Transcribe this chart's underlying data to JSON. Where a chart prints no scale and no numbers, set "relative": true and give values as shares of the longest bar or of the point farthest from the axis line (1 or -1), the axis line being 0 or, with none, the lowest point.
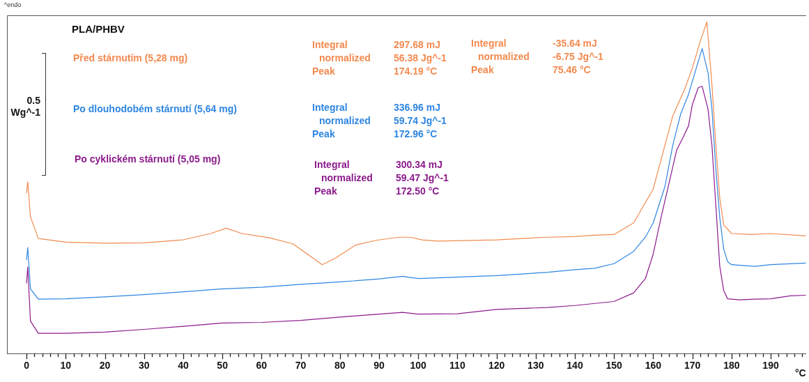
{
  "chart_data": {
    "type": "line",
    "title": "PLA/PHBV",
    "xlabel": "°C",
    "relative": true,
    "legend": false,
    "marker": "none",
    "line_style": "solid",
    "grid": false,
    "tick_labels": "x",
    "xlim": [
      -5,
      199
    ],
    "xticks": [
      0,
      {
        "value": 2,
        "label": null
      },
      {
        "value": 4,
        "label": null
      },
      {
        "value": 6,
        "label": null
      },
      {
        "value": 8,
        "label": null
      },
      10,
      {
        "value": 12,
        "label": null
      },
      {
        "value": 14,
        "label": null
      },
      {
        "value": 16,
        "label": null
      },
      {
        "value": 18,
        "label": null
      },
      20,
      {
        "value": 22,
        "label": null
      },
      {
        "value": 24,
        "label": null
      },
      {
        "value": 26,
        "label": null
      },
      {
        "value": 28,
        "label": null
      },
      30,
      {
        "value": 32,
        "label": null
      },
      {
        "value": 34,
        "label": null
      },
      {
        "value": 36,
        "label": null
      },
      {
        "value": 38,
        "label": null
      },
      40,
      {
        "value": 42,
        "label": null
      },
      {
        "value": 44,
        "label": null
      },
      {
        "value": 46,
        "label": null
      },
      {
        "value": 48,
        "label": null
      },
      50,
      {
        "value": 52,
        "label": null
      },
      {
        "value": 54,
        "label": null
      },
      {
        "value": 56,
        "label": null
      },
      {
        "value": 58,
        "label": null
      },
      60,
      {
        "value": 62,
        "label": null
      },
      {
        "value": 64,
        "label": null
      },
      {
        "value": 66,
        "label": null
      },
      {
        "value": 68,
        "label": null
      },
      70,
      {
        "value": 72,
        "label": null
      },
      {
        "value": 74,
        "label": null
      },
      {
        "value": 76,
        "label": null
      },
      {
        "value": 78,
        "label": null
      },
      80,
      {
        "value": 82,
        "label": null
      },
      {
        "value": 84,
        "label": null
      },
      {
        "value": 86,
        "label": null
      },
      {
        "value": 88,
        "label": null
      },
      90,
      {
        "value": 92,
        "label": null
      },
      {
        "value": 94,
        "label": null
      },
      {
        "value": 96,
        "label": null
      },
      {
        "value": 98,
        "label": null
      },
      100,
      {
        "value": 102,
        "label": null
      },
      {
        "value": 104,
        "label": null
      },
      {
        "value": 106,
        "label": null
      },
      {
        "value": 108,
        "label": null
      },
      110,
      {
        "value": 112,
        "label": null
      },
      {
        "value": 114,
        "label": null
      },
      {
        "value": 116,
        "label": null
      },
      {
        "value": 118,
        "label": null
      },
      120,
      {
        "value": 122,
        "label": null
      },
      {
        "value": 124,
        "label": null
      },
      {
        "value": 126,
        "label": null
      },
      {
        "value": 128,
        "label": null
      },
      130,
      {
        "value": 132,
        "label": null
      },
      {
        "value": 134,
        "label": null
      },
      {
        "value": 136,
        "label": null
      },
      {
        "value": 138,
        "label": null
      },
      140,
      {
        "value": 142,
        "label": null
      },
      {
        "value": 144,
        "label": null
      },
      {
        "value": 146,
        "label": null
      },
      {
        "value": 148,
        "label": null
      },
      150,
      {
        "value": 152,
        "label": null
      },
      {
        "value": 154,
        "label": null
      },
      {
        "value": 156,
        "label": null
      },
      {
        "value": 158,
        "label": null
      },
      160,
      {
        "value": 162,
        "label": null
      },
      {
        "value": 164,
        "label": null
      },
      {
        "value": 166,
        "label": null
      },
      {
        "value": 168,
        "label": null
      },
      170,
      {
        "value": 172,
        "label": null
      },
      {
        "value": 174,
        "label": null
      },
      {
        "value": 176,
        "label": null
      },
      {
        "value": 178,
        "label": null
      },
      180,
      {
        "value": 182,
        "label": null
      },
      {
        "value": 184,
        "label": null
      },
      {
        "value": 186,
        "label": null
      },
      {
        "value": 188,
        "label": null
      },
      190,
      {
        "value": 192,
        "label": null
      },
      {
        "value": 194,
        "label": null
      },
      {
        "value": 196,
        "label": null
      },
      {
        "value": 198,
        "label": null
      }
    ],
    "annotations": [
      "^endo",
      "0.5\nWg^-1",
      "Integral 297.68 mJ\nnormalized 56.38 Jg^-1\nPeak 174.19 °C",
      "Integral -35.64 mJ\nnormalized -6.75 Jg^-1\nPeak 75.46 °C",
      "Integral 336.96 mJ\nnormalized 59.74 Jg^-1\nPeak 172.96 °C",
      "Integral 300.34 mJ\nnormalized 59.47 Jg^-1\nPeak 172.50 °C"
    ],
    "series": [
      {
        "name": "Před stárnutím (5,28 mg)",
        "color": "#f28a4f",
        "x": [
          0,
          0.3,
          1,
          3,
          10,
          20,
          30,
          40,
          47,
          51,
          55,
          60,
          62,
          68,
          73,
          75.5,
          79,
          84,
          89,
          95,
          98,
          101,
          105,
          120,
          133,
          140,
          145,
          150,
          155,
          160,
          165,
          168,
          170,
          172,
          173.7,
          175,
          176,
          177,
          178,
          180,
          185,
          190,
          199
        ],
        "values": [
          0.484,
          0.518,
          0.412,
          0.347,
          0.336,
          0.333,
          0.334,
          0.343,
          0.362,
          0.378,
          0.362,
          0.353,
          0.349,
          0.331,
          0.289,
          0.268,
          0.289,
          0.327,
          0.341,
          0.351,
          0.351,
          0.343,
          0.339,
          0.343,
          0.351,
          0.353,
          0.357,
          0.359,
          0.394,
          0.496,
          0.717,
          0.796,
          0.861,
          0.941,
          1.0,
          0.81,
          0.628,
          0.468,
          0.388,
          0.362,
          0.359,
          0.362,
          0.355
        ]
      },
      {
        "name": "Po dlouhodobém stárnutí (5,64 mg)",
        "color": "#2f86e0",
        "x": [
          0,
          0.3,
          1,
          3,
          10,
          20,
          30,
          40,
          50,
          60,
          70,
          80,
          90,
          96,
          100,
          120,
          133,
          140,
          145,
          150,
          155,
          158,
          160,
          163,
          165,
          167,
          169,
          171,
          172.5,
          174,
          175,
          176,
          177,
          178,
          179,
          180,
          186,
          190,
          199
        ],
        "values": [
          0.282,
          0.32,
          0.195,
          0.164,
          0.165,
          0.171,
          0.178,
          0.186,
          0.195,
          0.2,
          0.209,
          0.216,
          0.225,
          0.233,
          0.226,
          0.235,
          0.245,
          0.253,
          0.257,
          0.271,
          0.308,
          0.351,
          0.394,
          0.504,
          0.628,
          0.722,
          0.781,
          0.861,
          0.92,
          0.847,
          0.737,
          0.555,
          0.41,
          0.315,
          0.277,
          0.268,
          0.263,
          0.268,
          0.273
        ]
      },
      {
        "name": "Po cyklickém stárnutí (5,05 mg)",
        "color": "#8b1a8c",
        "x": [
          0,
          0.3,
          1,
          3,
          10,
          20,
          30,
          40,
          50,
          60,
          70,
          80,
          90,
          96,
          100,
          110,
          120,
          133,
          140,
          150,
          155,
          158,
          160,
          162,
          164,
          166,
          167.5,
          169,
          170,
          171.5,
          172.5,
          174,
          175,
          176,
          177,
          178,
          179,
          182,
          186,
          190,
          195,
          199
        ],
        "values": [
          0.212,
          0.261,
          0.098,
          0.061,
          0.061,
          0.065,
          0.073,
          0.082,
          0.092,
          0.094,
          0.1,
          0.11,
          0.119,
          0.124,
          0.119,
          0.12,
          0.133,
          0.139,
          0.145,
          0.157,
          0.183,
          0.226,
          0.3,
          0.41,
          0.512,
          0.614,
          0.649,
          0.686,
          0.751,
          0.802,
          0.806,
          0.737,
          0.628,
          0.445,
          0.263,
          0.19,
          0.165,
          0.162,
          0.164,
          0.165,
          0.174,
          0.176
        ]
      }
    ]
  }
}
